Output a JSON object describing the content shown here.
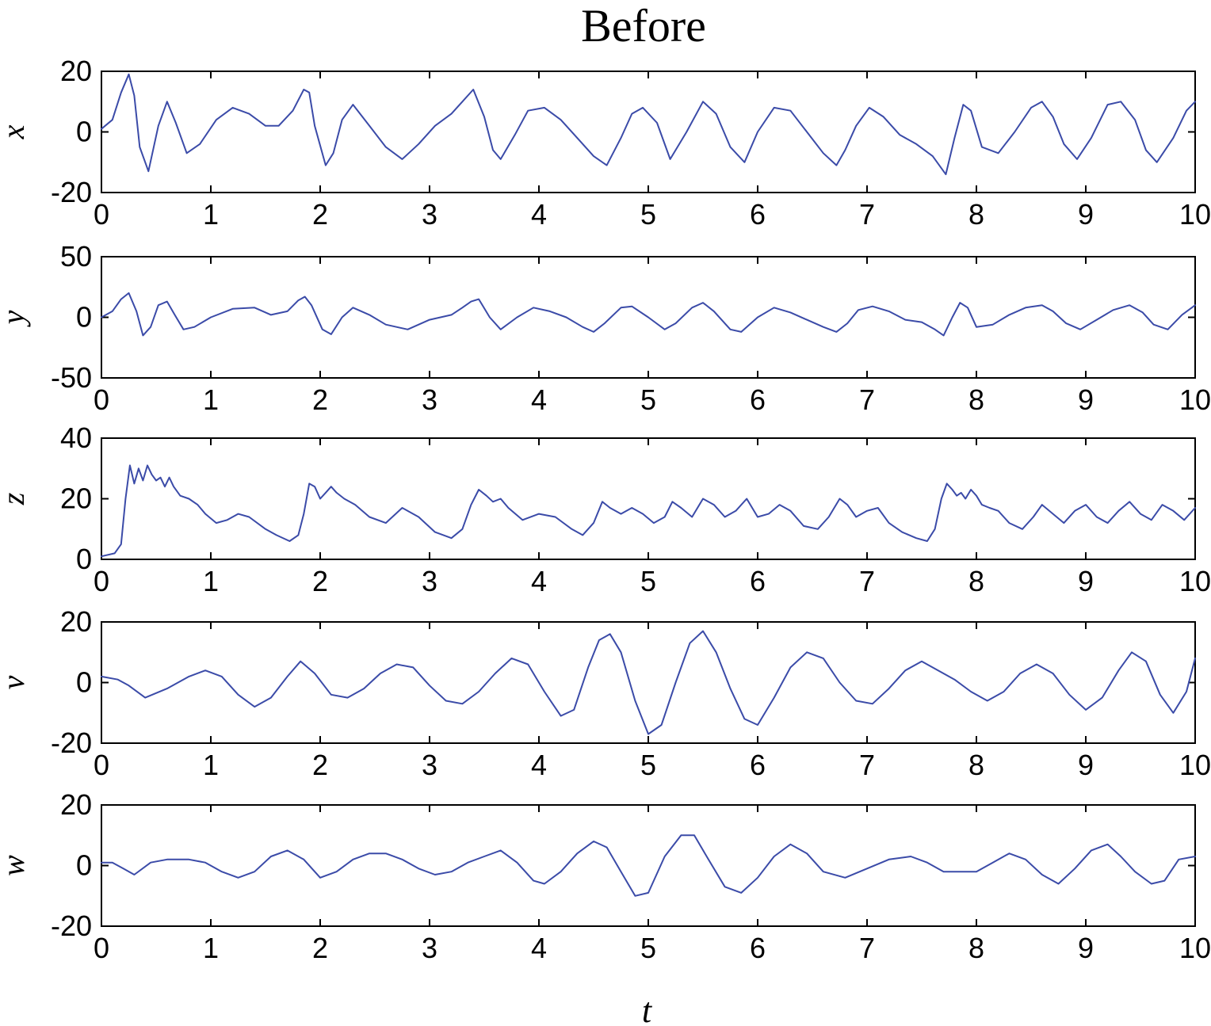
{
  "title": "Before",
  "chart_data": [
    {
      "type": "line",
      "ylabel": "x",
      "xlabel": "",
      "xlim": [
        0,
        10
      ],
      "ylim": [
        -20,
        20
      ],
      "xticks": [
        0,
        1,
        2,
        3,
        4,
        5,
        6,
        7,
        8,
        9,
        10
      ],
      "yticks": [
        -20,
        0,
        20
      ],
      "color": "#3b4ba8",
      "series": [
        {
          "x": [
            0,
            0.1,
            0.18,
            0.25,
            0.3,
            0.35,
            0.43,
            0.52,
            0.6,
            0.68,
            0.78,
            0.9,
            1.05,
            1.2,
            1.35,
            1.5,
            1.62,
            1.75,
            1.85,
            1.9,
            1.95,
            2.05,
            2.12,
            2.2,
            2.3,
            2.45,
            2.6,
            2.75,
            2.9,
            3.05,
            3.2,
            3.3,
            3.4,
            3.5,
            3.58,
            3.65,
            3.78,
            3.9,
            4.05,
            4.2,
            4.35,
            4.5,
            4.62,
            4.75,
            4.85,
            4.95,
            5.08,
            5.2,
            5.35,
            5.5,
            5.62,
            5.75,
            5.88,
            6.0,
            6.15,
            6.3,
            6.45,
            6.6,
            6.72,
            6.8,
            6.9,
            7.02,
            7.15,
            7.3,
            7.45,
            7.6,
            7.72,
            7.8,
            7.88,
            7.95,
            8.05,
            8.2,
            8.35,
            8.5,
            8.6,
            8.7,
            8.8,
            8.92,
            9.05,
            9.2,
            9.32,
            9.45,
            9.55,
            9.65,
            9.8,
            9.92,
            10.0
          ],
          "y": [
            1,
            4,
            13,
            19,
            12,
            -5,
            -13,
            2,
            10,
            3,
            -7,
            -4,
            4,
            8,
            6,
            2,
            2,
            7,
            14,
            13,
            2,
            -11,
            -7,
            4,
            9,
            2,
            -5,
            -9,
            -4,
            2,
            6,
            10,
            14,
            5,
            -6,
            -9,
            -1,
            7,
            8,
            4,
            -2,
            -8,
            -11,
            -2,
            6,
            8,
            3,
            -9,
            0,
            10,
            6,
            -5,
            -10,
            0,
            8,
            7,
            0,
            -7,
            -11,
            -6,
            2,
            8,
            5,
            -1,
            -4,
            -8,
            -14,
            -2,
            9,
            7,
            -5,
            -7,
            0,
            8,
            10,
            5,
            -4,
            -9,
            -2,
            9,
            10,
            4,
            -6,
            -10,
            -2,
            7,
            10
          ]
        }
      ]
    },
    {
      "type": "line",
      "ylabel": "y",
      "xlabel": "",
      "xlim": [
        0,
        10
      ],
      "ylim": [
        -50,
        50
      ],
      "xticks": [
        0,
        1,
        2,
        3,
        4,
        5,
        6,
        7,
        8,
        9,
        10
      ],
      "yticks": [
        -50,
        0,
        50
      ],
      "color": "#3b4ba8",
      "series": [
        {
          "x": [
            0,
            0.1,
            0.18,
            0.25,
            0.32,
            0.38,
            0.45,
            0.52,
            0.6,
            0.67,
            0.75,
            0.85,
            1.0,
            1.2,
            1.4,
            1.55,
            1.7,
            1.8,
            1.86,
            1.92,
            2.02,
            2.1,
            2.2,
            2.3,
            2.45,
            2.6,
            2.8,
            3.0,
            3.2,
            3.3,
            3.38,
            3.45,
            3.55,
            3.65,
            3.8,
            3.95,
            4.1,
            4.25,
            4.4,
            4.5,
            4.6,
            4.75,
            4.85,
            5.0,
            5.15,
            5.25,
            5.4,
            5.5,
            5.6,
            5.75,
            5.85,
            6.0,
            6.15,
            6.3,
            6.45,
            6.6,
            6.72,
            6.82,
            6.92,
            7.05,
            7.2,
            7.35,
            7.5,
            7.62,
            7.7,
            7.78,
            7.85,
            7.92,
            8.0,
            8.15,
            8.3,
            8.45,
            8.6,
            8.7,
            8.82,
            8.95,
            9.1,
            9.25,
            9.4,
            9.52,
            9.62,
            9.75,
            9.88,
            10.0
          ],
          "y": [
            0,
            5,
            15,
            20,
            5,
            -15,
            -8,
            10,
            13,
            2,
            -10,
            -8,
            0,
            7,
            8,
            2,
            5,
            14,
            17,
            10,
            -10,
            -14,
            0,
            8,
            2,
            -6,
            -10,
            -2,
            2,
            8,
            13,
            15,
            0,
            -10,
            0,
            8,
            5,
            0,
            -8,
            -12,
            -5,
            8,
            9,
            0,
            -10,
            -5,
            8,
            12,
            5,
            -10,
            -12,
            0,
            8,
            4,
            -2,
            -8,
            -12,
            -5,
            6,
            9,
            5,
            -2,
            -4,
            -10,
            -15,
            0,
            12,
            8,
            -8,
            -6,
            2,
            8,
            10,
            5,
            -5,
            -10,
            -2,
            6,
            10,
            4,
            -6,
            -10,
            2,
            10
          ]
        }
      ]
    },
    {
      "type": "line",
      "ylabel": "z",
      "xlabel": "",
      "xlim": [
        0,
        10
      ],
      "ylim": [
        0,
        40
      ],
      "xticks": [
        0,
        1,
        2,
        3,
        4,
        5,
        6,
        7,
        8,
        9,
        10
      ],
      "yticks": [
        0,
        20,
        40
      ],
      "color": "#3b4ba8",
      "series": [
        {
          "x": [
            0,
            0.12,
            0.18,
            0.22,
            0.26,
            0.3,
            0.34,
            0.38,
            0.42,
            0.46,
            0.5,
            0.54,
            0.58,
            0.62,
            0.66,
            0.72,
            0.8,
            0.88,
            0.95,
            1.05,
            1.15,
            1.25,
            1.35,
            1.5,
            1.6,
            1.72,
            1.8,
            1.85,
            1.9,
            1.95,
            2.0,
            2.05,
            2.1,
            2.15,
            2.22,
            2.32,
            2.45,
            2.6,
            2.75,
            2.9,
            3.05,
            3.2,
            3.3,
            3.38,
            3.45,
            3.52,
            3.58,
            3.65,
            3.72,
            3.85,
            4.0,
            4.15,
            4.3,
            4.4,
            4.5,
            4.58,
            4.65,
            4.75,
            4.85,
            4.95,
            5.05,
            5.15,
            5.22,
            5.3,
            5.4,
            5.5,
            5.6,
            5.7,
            5.8,
            5.9,
            6.0,
            6.1,
            6.2,
            6.3,
            6.42,
            6.55,
            6.65,
            6.75,
            6.82,
            6.9,
            7.0,
            7.1,
            7.2,
            7.32,
            7.45,
            7.55,
            7.62,
            7.68,
            7.73,
            7.78,
            7.82,
            7.86,
            7.9,
            7.95,
            8.0,
            8.05,
            8.12,
            8.2,
            8.3,
            8.42,
            8.52,
            8.6,
            8.7,
            8.8,
            8.9,
            9.0,
            9.1,
            9.2,
            9.3,
            9.4,
            9.5,
            9.6,
            9.7,
            9.8,
            9.9,
            10.0
          ],
          "y": [
            1,
            2,
            5,
            20,
            31,
            25,
            30,
            26,
            31,
            28,
            26,
            27,
            24,
            27,
            24,
            21,
            20,
            18,
            15,
            12,
            13,
            15,
            14,
            10,
            8,
            6,
            8,
            15,
            25,
            24,
            20,
            22,
            24,
            22,
            20,
            18,
            14,
            12,
            17,
            14,
            9,
            7,
            10,
            18,
            23,
            21,
            19,
            20,
            17,
            13,
            15,
            14,
            10,
            8,
            12,
            19,
            17,
            15,
            17,
            15,
            12,
            14,
            19,
            17,
            14,
            20,
            18,
            14,
            16,
            20,
            14,
            15,
            18,
            16,
            11,
            10,
            14,
            20,
            18,
            14,
            16,
            17,
            12,
            9,
            7,
            6,
            10,
            20,
            25,
            23,
            21,
            22,
            20,
            23,
            21,
            18,
            17,
            16,
            12,
            10,
            14,
            18,
            15,
            12,
            16,
            18,
            14,
            12,
            16,
            19,
            15,
            13,
            18,
            16,
            13,
            17
          ]
        }
      ]
    },
    {
      "type": "line",
      "ylabel": "v",
      "xlabel": "",
      "xlim": [
        0,
        10
      ],
      "ylim": [
        -20,
        20
      ],
      "xticks": [
        0,
        1,
        2,
        3,
        4,
        5,
        6,
        7,
        8,
        9,
        10
      ],
      "yticks": [
        -20,
        0,
        20
      ],
      "color": "#3b4ba8",
      "series": [
        {
          "x": [
            0,
            0.15,
            0.25,
            0.4,
            0.6,
            0.8,
            0.95,
            1.1,
            1.25,
            1.4,
            1.55,
            1.7,
            1.82,
            1.95,
            2.1,
            2.25,
            2.4,
            2.55,
            2.7,
            2.85,
            3.0,
            3.15,
            3.3,
            3.45,
            3.6,
            3.75,
            3.9,
            4.05,
            4.2,
            4.32,
            4.45,
            4.55,
            4.65,
            4.75,
            4.88,
            5.0,
            5.12,
            5.25,
            5.38,
            5.5,
            5.62,
            5.75,
            5.88,
            6.0,
            6.15,
            6.3,
            6.45,
            6.6,
            6.75,
            6.9,
            7.05,
            7.2,
            7.35,
            7.5,
            7.65,
            7.8,
            7.95,
            8.1,
            8.25,
            8.4,
            8.55,
            8.7,
            8.85,
            9.0,
            9.15,
            9.3,
            9.42,
            9.55,
            9.68,
            9.8,
            9.92,
            10.0
          ],
          "y": [
            2,
            1,
            -1,
            -5,
            -2,
            2,
            4,
            2,
            -4,
            -8,
            -5,
            2,
            7,
            3,
            -4,
            -5,
            -2,
            3,
            6,
            5,
            -1,
            -6,
            -7,
            -3,
            3,
            8,
            6,
            -3,
            -11,
            -9,
            5,
            14,
            16,
            10,
            -6,
            -17,
            -14,
            0,
            13,
            17,
            10,
            -2,
            -12,
            -14,
            -5,
            5,
            10,
            8,
            0,
            -6,
            -7,
            -2,
            4,
            7,
            4,
            1,
            -3,
            -6,
            -3,
            3,
            6,
            3,
            -4,
            -9,
            -5,
            4,
            10,
            7,
            -4,
            -10,
            -3,
            8
          ]
        }
      ]
    },
    {
      "type": "line",
      "ylabel": "w",
      "xlabel": "t",
      "xlim": [
        0,
        10
      ],
      "ylim": [
        -20,
        20
      ],
      "xticks": [
        0,
        1,
        2,
        3,
        4,
        5,
        6,
        7,
        8,
        9,
        10
      ],
      "yticks": [
        -20,
        0,
        20
      ],
      "color": "#3b4ba8",
      "series": [
        {
          "x": [
            0,
            0.1,
            0.2,
            0.3,
            0.45,
            0.6,
            0.8,
            0.95,
            1.1,
            1.25,
            1.4,
            1.55,
            1.7,
            1.85,
            2.0,
            2.15,
            2.3,
            2.45,
            2.6,
            2.75,
            2.9,
            3.05,
            3.2,
            3.35,
            3.5,
            3.65,
            3.8,
            3.95,
            4.05,
            4.2,
            4.35,
            4.5,
            4.62,
            4.75,
            4.88,
            5.0,
            5.15,
            5.3,
            5.42,
            5.55,
            5.7,
            5.85,
            6.0,
            6.15,
            6.3,
            6.45,
            6.6,
            6.8,
            7.0,
            7.2,
            7.4,
            7.55,
            7.7,
            7.85,
            8.0,
            8.15,
            8.3,
            8.45,
            8.6,
            8.75,
            8.9,
            9.05,
            9.2,
            9.32,
            9.45,
            9.6,
            9.72,
            9.85,
            10.0
          ],
          "y": [
            1,
            1,
            -1,
            -3,
            1,
            2,
            2,
            1,
            -2,
            -4,
            -2,
            3,
            5,
            2,
            -4,
            -2,
            2,
            4,
            4,
            2,
            -1,
            -3,
            -2,
            1,
            3,
            5,
            1,
            -5,
            -6,
            -2,
            4,
            8,
            6,
            -2,
            -10,
            -9,
            3,
            10,
            10,
            2,
            -7,
            -9,
            -4,
            3,
            7,
            4,
            -2,
            -4,
            -1,
            2,
            3,
            1,
            -2,
            -2,
            -2,
            1,
            4,
            2,
            -3,
            -6,
            -1,
            5,
            7,
            3,
            -2,
            -6,
            -5,
            2,
            3
          ]
        }
      ]
    }
  ]
}
